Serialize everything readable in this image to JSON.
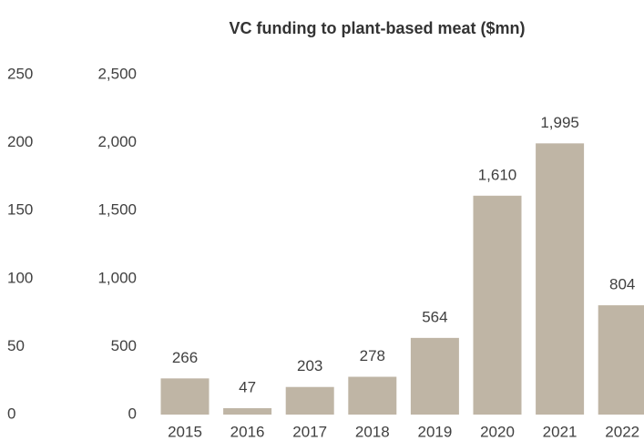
{
  "chart_data": {
    "type": "bar",
    "title": "VC funding to plant-based meat ($mn)",
    "categories": [
      "2015",
      "2016",
      "2017",
      "2018",
      "2019",
      "2020",
      "2021",
      "2022"
    ],
    "series": [
      {
        "name": "VC funding",
        "color": "#bfb5a5",
        "axis": "y2",
        "values": [
          266,
          47,
          203,
          278,
          564,
          1610,
          1995,
          804
        ],
        "value_labels": [
          "266",
          "47",
          "203",
          "278",
          "564",
          "1,610",
          "1,995",
          "804"
        ]
      }
    ],
    "ylim": [
      0,
      250
    ],
    "yticks": [
      0,
      50,
      100,
      150,
      200,
      250
    ],
    "y2lim": [
      0,
      2500
    ],
    "y2ticks": [
      0,
      500,
      {
        "value": 1000,
        "label": "1,000"
      },
      {
        "value": 1500,
        "label": "1,500"
      },
      {
        "value": 2000,
        "label": "2,000"
      },
      {
        "value": 2500,
        "label": "2,500"
      }
    ],
    "grid": false
  }
}
